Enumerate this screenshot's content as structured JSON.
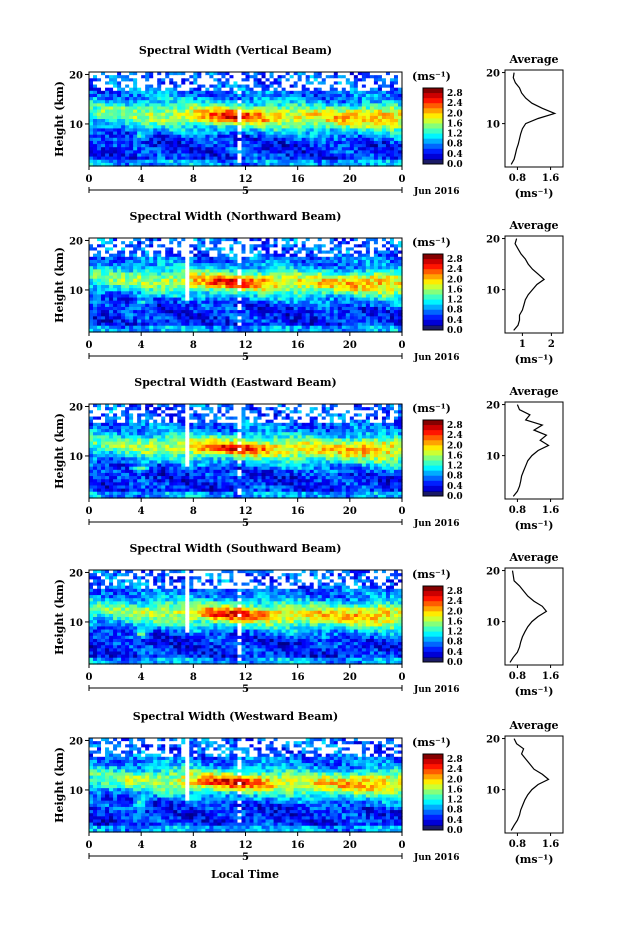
{
  "figure": {
    "xlabel": "Local Time",
    "date_label": "Jun 2016",
    "day_label": "5",
    "height_label": "Height (km)",
    "colorbar_unit": "(ms⁻¹)",
    "average_title": "Average"
  },
  "chart_data": [
    {
      "type": "heatmap",
      "title": "Spectral Width (Vertical Beam)",
      "x_ticks": [
        "0",
        "4",
        "8",
        "12",
        "16",
        "20",
        "0"
      ],
      "xlim": [
        0,
        24
      ],
      "y_ticks": [
        "20",
        "10"
      ],
      "ylim": [
        1.5,
        20.5
      ],
      "colorbar_ticks": [
        "2.8",
        "2.4",
        "2.0",
        "1.6",
        "1.2",
        "0.8",
        "0.4",
        "0.0"
      ],
      "colorbar_range": [
        0,
        3.0
      ],
      "profile": {
        "x_ticks": [
          "0.8",
          "1.6"
        ],
        "xlim": [
          0.5,
          1.9
        ],
        "heights": [
          2,
          3,
          4,
          5,
          6,
          7,
          8,
          9,
          10,
          11,
          12,
          13,
          14,
          15,
          16,
          17,
          18,
          19,
          20
        ],
        "values": [
          0.65,
          0.72,
          0.75,
          0.78,
          0.82,
          0.85,
          0.88,
          0.92,
          1.0,
          1.3,
          1.7,
          1.4,
          1.15,
          1.0,
          0.9,
          0.85,
          0.75,
          0.7,
          0.72
        ]
      }
    },
    {
      "type": "heatmap",
      "title": "Spectral Width (Northward Beam)",
      "x_ticks": [
        "0",
        "4",
        "8",
        "12",
        "16",
        "20",
        "0"
      ],
      "xlim": [
        0,
        24
      ],
      "y_ticks": [
        "20",
        "10"
      ],
      "ylim": [
        1.5,
        20.5
      ],
      "colorbar_ticks": [
        "2.8",
        "2.4",
        "2.0",
        "1.6",
        "1.2",
        "0.8",
        "0.4",
        "0.0"
      ],
      "colorbar_range": [
        0,
        3.0
      ],
      "profile": {
        "x_ticks": [
          "1",
          "2"
        ],
        "xlim": [
          0.4,
          2.4
        ],
        "heights": [
          2,
          3,
          4,
          5,
          6,
          7,
          8,
          9,
          10,
          11,
          12,
          13,
          14,
          15,
          16,
          17,
          18,
          19,
          20
        ],
        "values": [
          0.7,
          0.85,
          0.9,
          0.9,
          1.0,
          1.05,
          1.1,
          1.2,
          1.35,
          1.5,
          1.75,
          1.55,
          1.35,
          1.2,
          1.1,
          0.95,
          0.85,
          0.75,
          0.8
        ]
      }
    },
    {
      "type": "heatmap",
      "title": "Spectral Width (Eastward Beam)",
      "x_ticks": [
        "0",
        "4",
        "8",
        "12",
        "16",
        "20",
        "0"
      ],
      "xlim": [
        0,
        24
      ],
      "y_ticks": [
        "20",
        "10"
      ],
      "ylim": [
        1.5,
        20.5
      ],
      "colorbar_ticks": [
        "2.8",
        "2.4",
        "2.0",
        "1.6",
        "1.2",
        "0.8",
        "0.4",
        "0.0"
      ],
      "colorbar_range": [
        0,
        3.0
      ],
      "profile": {
        "x_ticks": [
          "0.8",
          "1.6"
        ],
        "xlim": [
          0.5,
          1.9
        ],
        "heights": [
          2,
          3,
          4,
          5,
          6,
          7,
          8,
          9,
          10,
          11,
          12,
          13,
          14,
          15,
          16,
          17,
          18,
          19,
          20
        ],
        "values": [
          0.7,
          0.8,
          0.85,
          0.88,
          0.9,
          0.95,
          1.0,
          1.05,
          1.15,
          1.3,
          1.55,
          1.35,
          1.5,
          1.2,
          1.4,
          1.0,
          1.1,
          0.85,
          0.8
        ]
      }
    },
    {
      "type": "heatmap",
      "title": "Spectral Width (Southward Beam)",
      "x_ticks": [
        "0",
        "4",
        "8",
        "12",
        "16",
        "20",
        "0"
      ],
      "xlim": [
        0,
        24
      ],
      "y_ticks": [
        "20",
        "10"
      ],
      "ylim": [
        1.5,
        20.5
      ],
      "colorbar_ticks": [
        "2.8",
        "2.4",
        "2.0",
        "1.6",
        "1.2",
        "0.8",
        "0.4",
        "0.0"
      ],
      "colorbar_range": [
        0,
        3.0
      ],
      "profile": {
        "x_ticks": [
          "0.8",
          "1.6"
        ],
        "xlim": [
          0.5,
          1.9
        ],
        "heights": [
          2,
          3,
          4,
          5,
          6,
          7,
          8,
          9,
          10,
          11,
          12,
          13,
          14,
          15,
          16,
          17,
          18,
          19,
          20
        ],
        "values": [
          0.62,
          0.7,
          0.8,
          0.85,
          0.88,
          0.92,
          0.98,
          1.05,
          1.15,
          1.3,
          1.5,
          1.4,
          1.2,
          1.05,
          0.95,
          0.85,
          0.72,
          0.7,
          0.68
        ]
      }
    },
    {
      "type": "heatmap",
      "title": "Spectral Width (Westward Beam)",
      "x_ticks": [
        "0",
        "4",
        "8",
        "12",
        "16",
        "20",
        "0"
      ],
      "xlim": [
        0,
        24
      ],
      "y_ticks": [
        "20",
        "10"
      ],
      "ylim": [
        1.5,
        20.5
      ],
      "colorbar_ticks": [
        "2.8",
        "2.4",
        "2.0",
        "1.6",
        "1.2",
        "0.8",
        "0.4",
        "0.0"
      ],
      "colorbar_range": [
        0,
        3.0
      ],
      "profile": {
        "x_ticks": [
          "0.8",
          "1.6"
        ],
        "xlim": [
          0.5,
          1.9
        ],
        "heights": [
          2,
          3,
          4,
          5,
          6,
          7,
          8,
          9,
          10,
          11,
          12,
          13,
          14,
          15,
          16,
          17,
          18,
          19,
          20
        ],
        "values": [
          0.65,
          0.72,
          0.8,
          0.85,
          0.88,
          0.93,
          0.98,
          1.05,
          1.15,
          1.3,
          1.55,
          1.4,
          1.2,
          1.1,
          1.0,
          0.9,
          0.95,
          0.78,
          0.72
        ]
      }
    }
  ]
}
